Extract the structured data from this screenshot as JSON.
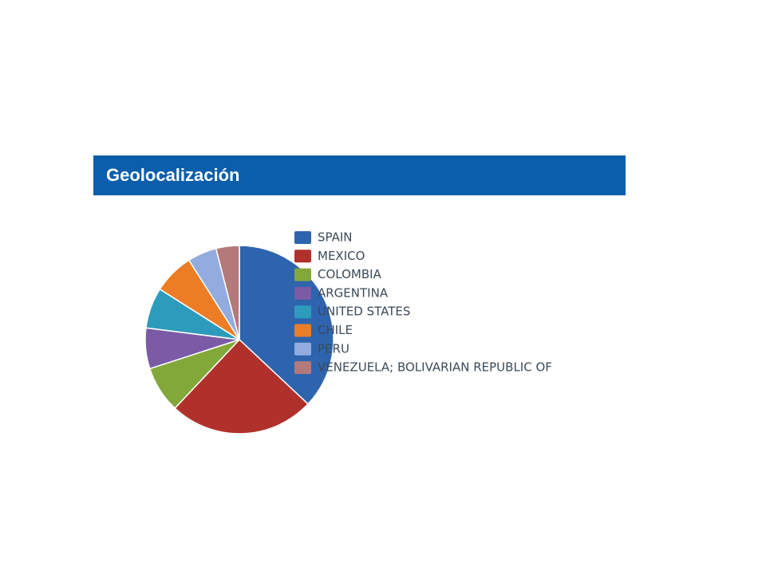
{
  "chart_data": {
    "type": "pie",
    "title": "Geolocalización",
    "categories": [
      "SPAIN",
      "MEXICO",
      "COLOMBIA",
      "ARGENTINA",
      "UNITED STATES",
      "CHILE",
      "PERU",
      "VENEZUELA; BOLIVARIAN REPUBLIC OF"
    ],
    "values": [
      37,
      25,
      8,
      7,
      7,
      7,
      5,
      4
    ],
    "colors": [
      "#2e64ad",
      "#b0302b",
      "#83a83a",
      "#7b5aa6",
      "#2d9bbb",
      "#ec7d25",
      "#92acdf",
      "#b47a7a"
    ]
  }
}
